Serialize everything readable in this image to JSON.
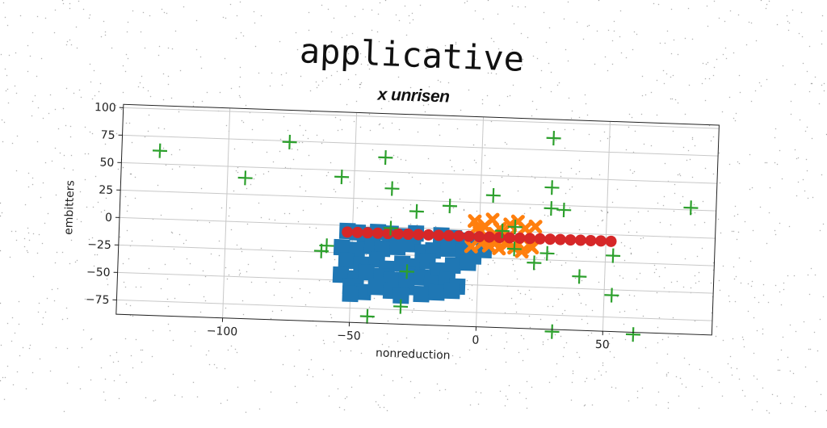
{
  "chart_data": {
    "type": "scatter",
    "title": "applicative",
    "subtitle": "x unrisen",
    "xlabel": "nonreduction",
    "ylabel": "embitters",
    "xlim": [
      -142,
      93
    ],
    "ylim": [
      -88,
      103
    ],
    "xticks": [
      -100,
      -50,
      0,
      50
    ],
    "xtick_labels": [
      "−100",
      "−50",
      "0",
      "50"
    ],
    "yticks": [
      -75,
      -50,
      -25,
      0,
      25,
      50,
      75,
      100
    ],
    "ytick_labels": [
      "−75",
      "−50",
      "−25",
      "0",
      "25",
      "50",
      "75",
      "100"
    ],
    "grid": true,
    "series": [
      {
        "color": "#1f77b4",
        "marker": "square",
        "points": [
          [
            -52,
            -5
          ],
          [
            -48,
            -6
          ],
          [
            -45,
            -8
          ],
          [
            -40,
            -5
          ],
          [
            -35,
            -6
          ],
          [
            -30,
            -8
          ],
          [
            -25,
            -5
          ],
          [
            -15,
            -6
          ],
          [
            -10,
            -8
          ],
          [
            -5,
            -10
          ],
          [
            -54,
            -20
          ],
          [
            -48,
            -22
          ],
          [
            -42,
            -18
          ],
          [
            -38,
            -20
          ],
          [
            -32,
            -18
          ],
          [
            -26,
            -15
          ],
          [
            -22,
            -22
          ],
          [
            -18,
            -20
          ],
          [
            -12,
            -18
          ],
          [
            -6,
            -20
          ],
          [
            -2,
            -24
          ],
          [
            2,
            -18
          ],
          [
            -52,
            -32
          ],
          [
            -46,
            -35
          ],
          [
            -40,
            -30
          ],
          [
            -36,
            -38
          ],
          [
            -30,
            -33
          ],
          [
            -24,
            -35
          ],
          [
            -20,
            -30
          ],
          [
            -16,
            -38
          ],
          [
            -10,
            -33
          ],
          [
            -4,
            -30
          ],
          [
            -54,
            -45
          ],
          [
            -48,
            -48
          ],
          [
            -44,
            -42
          ],
          [
            -38,
            -45
          ],
          [
            -34,
            -48
          ],
          [
            -28,
            -42
          ],
          [
            -22,
            -45
          ],
          [
            -18,
            -50
          ],
          [
            -12,
            -46
          ],
          [
            -8,
            -52
          ],
          [
            -50,
            -55
          ],
          [
            -45,
            -60
          ],
          [
            -40,
            -55
          ],
          [
            -34,
            -58
          ],
          [
            -28,
            -54
          ],
          [
            -22,
            -60
          ],
          [
            -16,
            -58
          ],
          [
            -10,
            -56
          ],
          [
            -50,
            -62
          ],
          [
            -30,
            -62
          ]
        ]
      },
      {
        "color": "#ff7f0e",
        "marker": "x",
        "points": [
          [
            -2,
            8
          ],
          [
            2,
            4
          ],
          [
            5,
            10
          ],
          [
            8,
            2
          ],
          [
            12,
            6
          ],
          [
            15,
            9
          ],
          [
            18,
            3
          ],
          [
            22,
            5
          ],
          [
            0,
            -2
          ],
          [
            3,
            -6
          ],
          [
            6,
            -3
          ],
          [
            9,
            -8
          ],
          [
            12,
            -4
          ],
          [
            15,
            -10
          ],
          [
            18,
            -6
          ],
          [
            20,
            -12
          ],
          [
            -3,
            -15
          ],
          [
            1,
            -12
          ],
          [
            4,
            -14
          ],
          [
            8,
            -16
          ],
          [
            11,
            -12
          ],
          [
            14,
            -15
          ],
          [
            17,
            -18
          ],
          [
            21,
            -14
          ],
          [
            -1,
            2
          ],
          [
            7,
            -10
          ]
        ]
      },
      {
        "color": "#d62728",
        "marker": "circle",
        "points": [
          [
            -52,
            -6
          ],
          [
            -48,
            -6
          ],
          [
            -44,
            -6
          ],
          [
            -40,
            -6
          ],
          [
            -36,
            -6
          ],
          [
            -32,
            -6
          ],
          [
            -28,
            -6
          ],
          [
            -24,
            -6
          ],
          [
            -20,
            -6
          ],
          [
            -16,
            -6
          ],
          [
            -12,
            -6
          ],
          [
            -8,
            -6
          ],
          [
            -4,
            -6
          ],
          [
            0,
            -6
          ],
          [
            4,
            -6
          ],
          [
            8,
            -6
          ],
          [
            12,
            -6
          ],
          [
            16,
            -6
          ],
          [
            20,
            -6
          ],
          [
            24,
            -6
          ],
          [
            28,
            -6
          ],
          [
            32,
            -6
          ],
          [
            36,
            -6
          ],
          [
            40,
            -6
          ],
          [
            44,
            -6
          ],
          [
            48,
            -6
          ],
          [
            52,
            -6
          ]
        ]
      },
      {
        "color": "#2ca02c",
        "marker": "plus",
        "points": [
          [
            -127,
            62
          ],
          [
            -93,
            40
          ],
          [
            -76,
            74
          ],
          [
            -55,
            44
          ],
          [
            -38,
            63
          ],
          [
            -35,
            35
          ],
          [
            -25,
            15
          ],
          [
            -12,
            21
          ],
          [
            5,
            32
          ],
          [
            28,
            22
          ],
          [
            28,
            41
          ],
          [
            33,
            21
          ],
          [
            28,
            86
          ],
          [
            83,
            27
          ],
          [
            9,
            0
          ],
          [
            14,
            4
          ],
          [
            -35,
            -1
          ],
          [
            -60,
            -19
          ],
          [
            -62,
            -24
          ],
          [
            -28,
            -40
          ],
          [
            -30,
            -72
          ],
          [
            -43,
            -82
          ],
          [
            22,
            -28
          ],
          [
            27,
            -19
          ],
          [
            40,
            -39
          ],
          [
            53,
            -55
          ],
          [
            53,
            -19
          ],
          [
            30,
            -90
          ],
          [
            62,
            -90
          ],
          [
            14,
            -16
          ]
        ]
      }
    ]
  }
}
